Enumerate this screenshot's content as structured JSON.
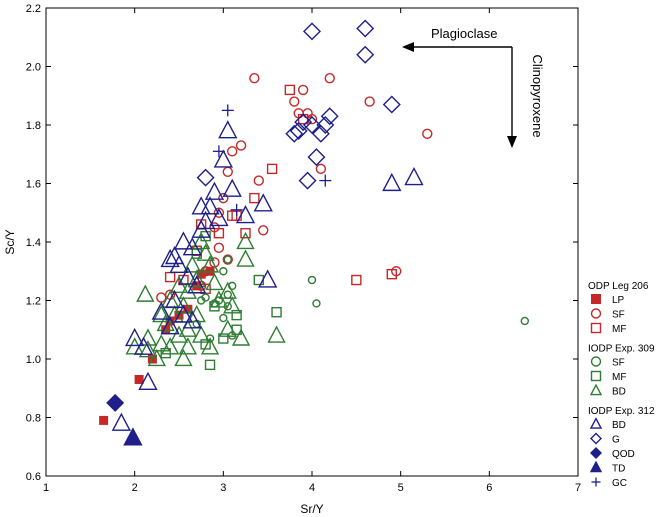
{
  "colors": {
    "red": "#c62828",
    "green": "#2e7d32",
    "blue": "#1f1f8c"
  },
  "chart_data": {
    "type": "scatter",
    "title": "",
    "xlabel": "Sr/Y",
    "ylabel": "Sc/Y",
    "xlim": [
      1,
      7
    ],
    "ylim": [
      0.6,
      2.2
    ],
    "xticks": [
      "1",
      "2",
      "3",
      "4",
      "5",
      "6",
      "7"
    ],
    "yticks": [
      "0.6",
      "0.8",
      "1.0",
      "1.2",
      "1.4",
      "1.6",
      "1.8",
      "2.0",
      "2.2"
    ],
    "grid": false,
    "legend_position": "right",
    "annotations": {
      "horizontal_arrow": "Plagioclase",
      "vertical_arrow": "Clinopyroxene"
    },
    "legend_groups": [
      {
        "title": "ODP Leg 206",
        "items": [
          {
            "label": "LP",
            "marker": "square-filled",
            "color": "red"
          },
          {
            "label": "SF",
            "marker": "circle-open",
            "color": "red"
          },
          {
            "label": "MF",
            "marker": "square-open",
            "color": "red"
          }
        ]
      },
      {
        "title": "IODP Exp. 309",
        "items": [
          {
            "label": "SF",
            "marker": "circle-open",
            "color": "green"
          },
          {
            "label": "MF",
            "marker": "square-open",
            "color": "green"
          },
          {
            "label": "BD",
            "marker": "triangle-open",
            "color": "green"
          }
        ]
      },
      {
        "title": "IODP Exp. 312",
        "items": [
          {
            "label": "BD",
            "marker": "triangle-open",
            "color": "blue"
          },
          {
            "label": "G",
            "marker": "diamond-open",
            "color": "blue"
          },
          {
            "label": "QOD",
            "marker": "diamond-filled",
            "color": "blue"
          },
          {
            "label": "TD",
            "marker": "triangle-filled",
            "color": "blue"
          },
          {
            "label": "GC",
            "marker": "plus",
            "color": "blue"
          }
        ]
      }
    ],
    "series": [
      {
        "group": "ODP Leg 206",
        "name": "LP",
        "marker": "square-filled",
        "color": "red",
        "points": [
          [
            1.65,
            0.79
          ],
          [
            2.05,
            0.93
          ],
          [
            2.2,
            1.0
          ],
          [
            2.35,
            1.1
          ],
          [
            2.4,
            1.13
          ],
          [
            2.5,
            1.15
          ],
          [
            2.6,
            1.17
          ],
          [
            2.7,
            1.25
          ],
          [
            2.75,
            1.29
          ],
          [
            2.85,
            1.3
          ]
        ]
      },
      {
        "group": "ODP Leg 206",
        "name": "SF",
        "marker": "circle-open",
        "color": "red",
        "points": [
          [
            3.35,
            1.96
          ],
          [
            4.2,
            1.96
          ],
          [
            3.9,
            1.92
          ],
          [
            3.8,
            1.88
          ],
          [
            4.65,
            1.88
          ],
          [
            3.85,
            1.84
          ],
          [
            3.95,
            1.84
          ],
          [
            4.0,
            1.82
          ],
          [
            5.3,
            1.77
          ],
          [
            3.2,
            1.73
          ],
          [
            3.1,
            1.71
          ],
          [
            3.05,
            1.64
          ],
          [
            4.1,
            1.65
          ],
          [
            3.4,
            1.61
          ],
          [
            3.0,
            1.55
          ],
          [
            2.95,
            1.5
          ],
          [
            2.9,
            1.45
          ],
          [
            3.45,
            1.44
          ],
          [
            2.95,
            1.38
          ],
          [
            3.05,
            1.34
          ],
          [
            2.9,
            1.33
          ],
          [
            2.8,
            1.3
          ],
          [
            4.95,
            1.3
          ],
          [
            2.75,
            1.25
          ],
          [
            2.4,
            1.22
          ],
          [
            2.3,
            1.21
          ]
        ]
      },
      {
        "group": "ODP Leg 206",
        "name": "MF",
        "marker": "square-open",
        "color": "red",
        "points": [
          [
            3.75,
            1.92
          ],
          [
            3.9,
            1.82
          ],
          [
            3.55,
            1.65
          ],
          [
            3.35,
            1.55
          ],
          [
            3.1,
            1.49
          ],
          [
            3.15,
            1.49
          ],
          [
            2.75,
            1.46
          ],
          [
            3.25,
            1.43
          ],
          [
            2.95,
            1.43
          ],
          [
            2.7,
            1.37
          ],
          [
            2.4,
            1.28
          ],
          [
            2.55,
            1.27
          ],
          [
            2.8,
            1.24
          ],
          [
            4.5,
            1.27
          ],
          [
            4.9,
            1.29
          ]
        ]
      },
      {
        "group": "IODP Exp. 309",
        "name": "SF",
        "marker": "circle-open",
        "color": "green",
        "points": [
          [
            2.75,
            1.2
          ],
          [
            2.8,
            1.21
          ],
          [
            2.9,
            1.19
          ],
          [
            3.05,
            1.34
          ],
          [
            3.0,
            1.3
          ],
          [
            3.1,
            1.25
          ],
          [
            3.05,
            1.22
          ],
          [
            2.95,
            1.2
          ],
          [
            3.05,
            1.18
          ],
          [
            3.0,
            1.14
          ],
          [
            3.1,
            1.08
          ],
          [
            4.0,
            1.27
          ],
          [
            4.05,
            1.19
          ],
          [
            6.4,
            1.13
          ],
          [
            2.85,
            1.07
          ],
          [
            2.7,
            1.12
          ]
        ]
      },
      {
        "group": "IODP Exp. 309",
        "name": "MF",
        "marker": "square-open",
        "color": "green",
        "points": [
          [
            2.7,
            1.36
          ],
          [
            2.8,
            1.42
          ],
          [
            3.4,
            1.27
          ],
          [
            2.9,
            1.18
          ],
          [
            3.15,
            1.15
          ],
          [
            3.6,
            1.16
          ],
          [
            3.15,
            1.1
          ],
          [
            2.8,
            1.05
          ],
          [
            3.0,
            1.07
          ],
          [
            2.85,
            0.98
          ],
          [
            2.35,
            1.02
          ]
        ]
      },
      {
        "group": "IODP Exp. 309",
        "name": "BD",
        "marker": "triangle-open",
        "color": "green",
        "points": [
          [
            2.12,
            1.22
          ],
          [
            2.3,
            1.15
          ],
          [
            2.4,
            1.2
          ],
          [
            2.5,
            1.25
          ],
          [
            2.6,
            1.23
          ],
          [
            2.55,
            1.18
          ],
          [
            2.7,
            1.27
          ],
          [
            2.65,
            1.32
          ],
          [
            2.75,
            1.4
          ],
          [
            2.8,
            1.36
          ],
          [
            2.85,
            1.32
          ],
          [
            2.9,
            1.26
          ],
          [
            2.95,
            1.2
          ],
          [
            3.05,
            1.23
          ],
          [
            3.1,
            1.18
          ],
          [
            3.25,
            1.34
          ],
          [
            3.25,
            1.4
          ],
          [
            3.05,
            1.1
          ],
          [
            3.2,
            1.07
          ],
          [
            3.6,
            1.08
          ],
          [
            2.6,
            1.1
          ],
          [
            2.5,
            1.08
          ],
          [
            2.75,
            1.08
          ],
          [
            2.3,
            1.05
          ],
          [
            2.4,
            1.04
          ],
          [
            2.6,
            1.04
          ],
          [
            2.85,
            1.04
          ],
          [
            2.0,
            1.04
          ],
          [
            2.15,
            1.03
          ],
          [
            2.25,
            1.0
          ],
          [
            2.55,
            1.0
          ],
          [
            2.35,
            1.12
          ],
          [
            2.45,
            1.15
          ],
          [
            2.7,
            1.15
          ],
          [
            2.15,
            1.07
          ]
        ]
      },
      {
        "group": "IODP Exp. 312",
        "name": "BD",
        "marker": "triangle-open",
        "color": "blue",
        "points": [
          [
            3.05,
            1.78
          ],
          [
            3.0,
            1.68
          ],
          [
            3.1,
            1.58
          ],
          [
            2.9,
            1.57
          ],
          [
            2.85,
            1.52
          ],
          [
            2.75,
            1.52
          ],
          [
            3.45,
            1.53
          ],
          [
            2.8,
            1.47
          ],
          [
            2.75,
            1.44
          ],
          [
            2.95,
            1.48
          ],
          [
            3.25,
            1.49
          ],
          [
            2.55,
            1.4
          ],
          [
            2.65,
            1.38
          ],
          [
            2.45,
            1.35
          ],
          [
            2.5,
            1.32
          ],
          [
            2.4,
            1.34
          ],
          [
            2.6,
            1.28
          ],
          [
            2.45,
            1.2
          ],
          [
            2.55,
            1.15
          ],
          [
            2.3,
            1.16
          ],
          [
            2.4,
            1.11
          ],
          [
            2.0,
            1.07
          ],
          [
            2.1,
            1.04
          ],
          [
            2.15,
            0.92
          ],
          [
            1.85,
            0.78
          ],
          [
            4.9,
            1.6
          ],
          [
            5.15,
            1.62
          ],
          [
            3.5,
            1.27
          ],
          [
            2.65,
            1.13
          ],
          [
            2.7,
            1.25
          ]
        ]
      },
      {
        "group": "IODP Exp. 312",
        "name": "G",
        "marker": "diamond-open",
        "color": "blue",
        "points": [
          [
            4.0,
            2.12
          ],
          [
            4.6,
            2.13
          ],
          [
            4.6,
            2.04
          ],
          [
            4.9,
            1.87
          ],
          [
            4.2,
            1.83
          ],
          [
            4.15,
            1.8
          ],
          [
            4.0,
            1.8
          ],
          [
            3.8,
            1.77
          ],
          [
            3.85,
            1.78
          ],
          [
            4.1,
            1.77
          ],
          [
            3.9,
            1.81
          ],
          [
            4.05,
            1.69
          ],
          [
            3.95,
            1.61
          ],
          [
            2.8,
            1.62
          ]
        ]
      },
      {
        "group": "IODP Exp. 312",
        "name": "QOD",
        "marker": "diamond-filled",
        "color": "blue",
        "points": [
          [
            1.78,
            0.85
          ]
        ]
      },
      {
        "group": "IODP Exp. 312",
        "name": "TD",
        "marker": "triangle-filled",
        "color": "blue",
        "points": [
          [
            1.98,
            0.73
          ]
        ]
      },
      {
        "group": "IODP Exp. 312",
        "name": "GC",
        "marker": "plus",
        "color": "blue",
        "points": [
          [
            3.05,
            1.85
          ],
          [
            2.95,
            1.71
          ],
          [
            4.15,
            1.61
          ],
          [
            3.15,
            1.51
          ]
        ]
      }
    ]
  }
}
